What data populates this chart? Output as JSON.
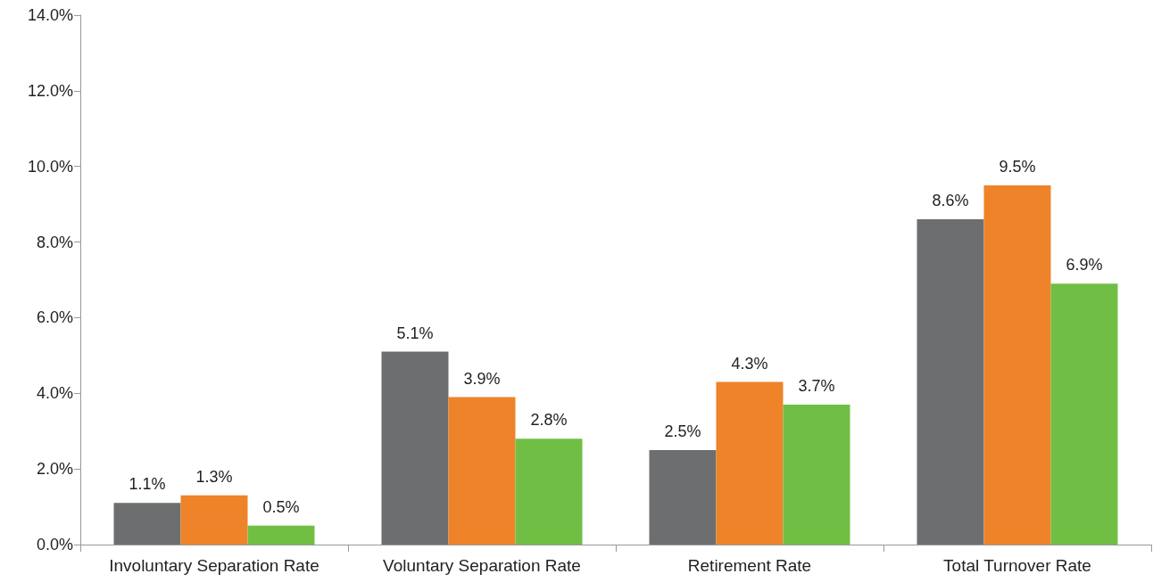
{
  "chart_data": {
    "type": "bar",
    "categories": [
      "Involuntary Separation Rate",
      "Voluntary Separation Rate",
      "Retirement Rate",
      "Total Turnover Rate"
    ],
    "series": [
      {
        "color": "#6d6e70",
        "values": [
          1.1,
          5.1,
          2.5,
          8.6
        ],
        "value_labels": [
          "1.1%",
          "5.1%",
          "2.5%",
          "8.6%"
        ]
      },
      {
        "color": "#ee8329",
        "values": [
          1.3,
          3.9,
          4.3,
          9.5
        ],
        "value_labels": [
          "1.3%",
          "3.9%",
          "4.3%",
          "9.5%"
        ]
      },
      {
        "color": "#70bf44",
        "values": [
          0.5,
          2.8,
          3.7,
          6.9
        ],
        "value_labels": [
          "0.5%",
          "2.8%",
          "3.7%",
          "6.9%"
        ]
      }
    ],
    "ylim": [
      0,
      14
    ],
    "yticks": [
      {
        "value": 0,
        "label": "0.0%"
      },
      {
        "value": 2,
        "label": "2.0%"
      },
      {
        "value": 4,
        "label": "4.0%"
      },
      {
        "value": 6,
        "label": "6.0%"
      },
      {
        "value": 8,
        "label": "8.0%"
      },
      {
        "value": 10,
        "label": "10.0%"
      },
      {
        "value": 12,
        "label": "12.0%"
      },
      {
        "value": 14,
        "label": "14.0%"
      }
    ],
    "grid": false
  }
}
